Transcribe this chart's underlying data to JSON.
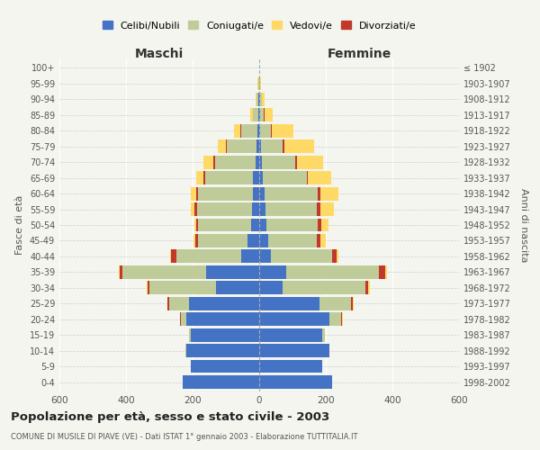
{
  "age_groups": [
    "0-4",
    "5-9",
    "10-14",
    "15-19",
    "20-24",
    "25-29",
    "30-34",
    "35-39",
    "40-44",
    "45-49",
    "50-54",
    "55-59",
    "60-64",
    "65-69",
    "70-74",
    "75-79",
    "80-84",
    "85-89",
    "90-94",
    "95-99",
    "100+"
  ],
  "birth_years": [
    "1998-2002",
    "1993-1997",
    "1988-1992",
    "1983-1987",
    "1978-1982",
    "1973-1977",
    "1968-1972",
    "1963-1967",
    "1958-1962",
    "1953-1957",
    "1948-1952",
    "1943-1947",
    "1938-1942",
    "1933-1937",
    "1928-1932",
    "1923-1927",
    "1918-1922",
    "1913-1917",
    "1908-1912",
    "1903-1907",
    "≤ 1902"
  ],
  "maschi": {
    "celibi": [
      230,
      205,
      220,
      205,
      220,
      210,
      130,
      160,
      55,
      35,
      25,
      22,
      20,
      18,
      12,
      8,
      5,
      3,
      2,
      1,
      0
    ],
    "coniugati": [
      0,
      0,
      2,
      5,
      15,
      60,
      200,
      250,
      195,
      150,
      160,
      165,
      165,
      145,
      120,
      90,
      50,
      15,
      5,
      3,
      1
    ],
    "vedovi": [
      0,
      0,
      0,
      0,
      2,
      2,
      2,
      2,
      2,
      3,
      5,
      10,
      15,
      20,
      30,
      25,
      20,
      8,
      3,
      1,
      0
    ],
    "divorziati": [
      0,
      0,
      0,
      0,
      2,
      5,
      5,
      10,
      15,
      8,
      5,
      8,
      5,
      5,
      5,
      2,
      2,
      1,
      0,
      0,
      0
    ]
  },
  "femmine": {
    "nubili": [
      220,
      190,
      210,
      190,
      210,
      180,
      70,
      80,
      35,
      28,
      22,
      18,
      15,
      12,
      8,
      6,
      4,
      3,
      2,
      1,
      0
    ],
    "coniugate": [
      0,
      0,
      2,
      8,
      35,
      95,
      250,
      280,
      185,
      145,
      155,
      155,
      160,
      130,
      100,
      65,
      30,
      10,
      5,
      3,
      1
    ],
    "vedove": [
      0,
      0,
      0,
      0,
      2,
      5,
      5,
      5,
      5,
      15,
      20,
      40,
      55,
      70,
      80,
      90,
      65,
      25,
      8,
      2,
      0
    ],
    "divorziate": [
      0,
      0,
      0,
      0,
      3,
      5,
      8,
      18,
      12,
      12,
      10,
      10,
      8,
      5,
      5,
      5,
      3,
      2,
      1,
      0,
      0
    ]
  },
  "colors": {
    "celibi_nubili": "#4472C4",
    "coniugati": "#BFCC99",
    "vedovi": "#FFD966",
    "divorziati": "#C0392B"
  },
  "xlim": 600,
  "title": "Popolazione per età, sesso e stato civile - 2003",
  "subtitle": "COMUNE DI MUSILE DI PIAVE (VE) - Dati ISTAT 1° gennaio 2003 - Elaborazione TUTTITALIA.IT",
  "ylabel_left": "Fasce di età",
  "ylabel_right": "Anni di nascita",
  "xlabel_maschi": "Maschi",
  "xlabel_femmine": "Femmine",
  "legend_labels": [
    "Celibi/Nubili",
    "Coniugati/e",
    "Vedovi/e",
    "Divorziati/e"
  ],
  "background_color": "#f5f5f0",
  "plot_bg": "#f5f5f0",
  "bar_height": 0.85
}
